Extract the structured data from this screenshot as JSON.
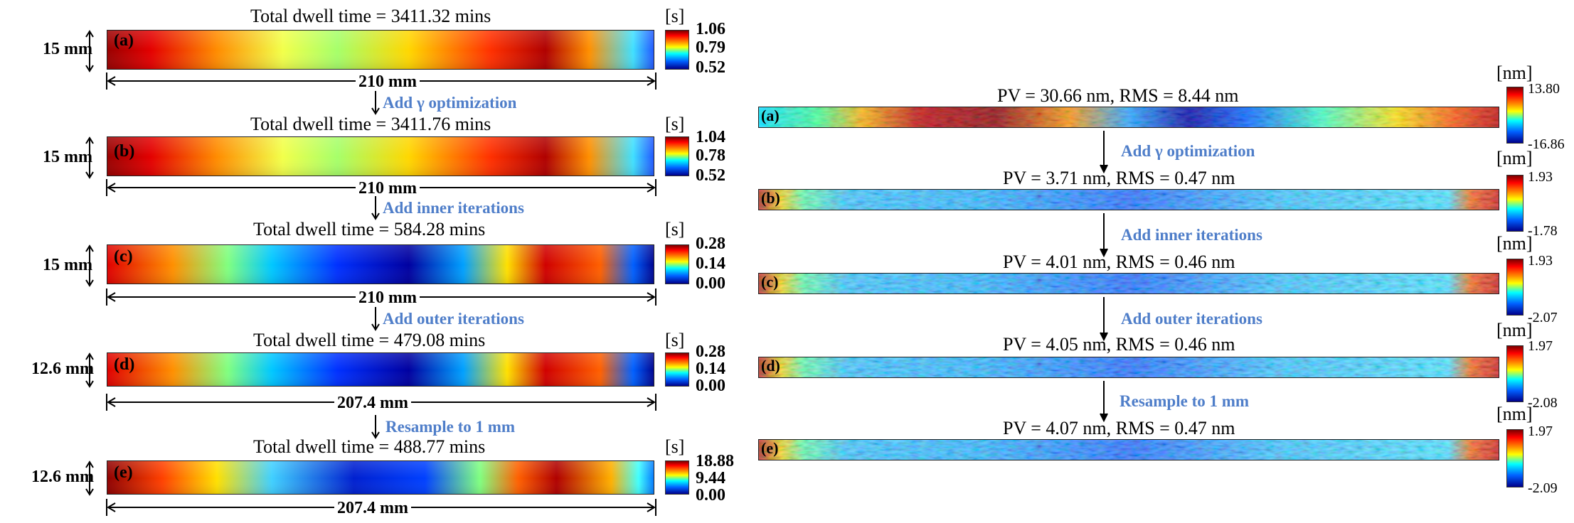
{
  "left": {
    "unit": "[s]",
    "panels": [
      {
        "label": "(a)",
        "title": "Total dwell time = 3411.32 mins",
        "height": "15 mm",
        "width": "210 mm",
        "ticks": [
          "1.06",
          "0.79",
          "0.52"
        ],
        "map": "dwell-a"
      },
      {
        "label": "(b)",
        "title": "Total dwell time = 3411.76 mins",
        "height": "15 mm",
        "width": "210 mm",
        "ticks": [
          "1.04",
          "0.78",
          "0.52"
        ],
        "map": "dwell-b"
      },
      {
        "label": "(c)",
        "title": "Total dwell time = 584.28 mins",
        "height": "15 mm",
        "width": "210 mm",
        "ticks": [
          "0.28",
          "0.14",
          "0.00"
        ],
        "map": "dwell-c"
      },
      {
        "label": "(d)",
        "title": "Total dwell time = 479.08 mins",
        "height": "12.6 mm",
        "width": "207.4 mm",
        "ticks": [
          "0.28",
          "0.14",
          "0.00"
        ],
        "map": "dwell-d"
      },
      {
        "label": "(e)",
        "title": "Total dwell time = 488.77 mins",
        "height": "12.6 mm",
        "width": "207.4 mm",
        "ticks": [
          "18.88",
          "9.44",
          "0.00"
        ],
        "map": "dwell-e"
      }
    ],
    "steps": [
      "Add γ optimization",
      "Add inner iterations",
      "Add outer iterations",
      "Resample to 1 mm"
    ]
  },
  "right": {
    "unit": "[nm]",
    "panels": [
      {
        "label": "(a)",
        "title": "PV = 30.66 nm, RMS = 8.44 nm",
        "ticks": [
          "13.80",
          "-16.86"
        ]
      },
      {
        "label": "(b)",
        "title": "PV = 3.71 nm, RMS = 0.47 nm",
        "ticks": [
          "1.93",
          "-1.78"
        ]
      },
      {
        "label": "(c)",
        "title": "PV = 4.01 nm, RMS = 0.46 nm",
        "ticks": [
          "1.93",
          "-2.07"
        ]
      },
      {
        "label": "(d)",
        "title": "PV = 4.05 nm, RMS = 0.46 nm",
        "ticks": [
          "1.97",
          "-2.08"
        ]
      },
      {
        "label": "(e)",
        "title": "PV = 4.07 nm, RMS = 0.47 nm",
        "ticks": [
          "1.97",
          "-2.09"
        ]
      }
    ],
    "steps": [
      "Add γ optimization",
      "Add inner iterations",
      "Add outer iterations",
      "Resample to 1 mm"
    ]
  }
}
